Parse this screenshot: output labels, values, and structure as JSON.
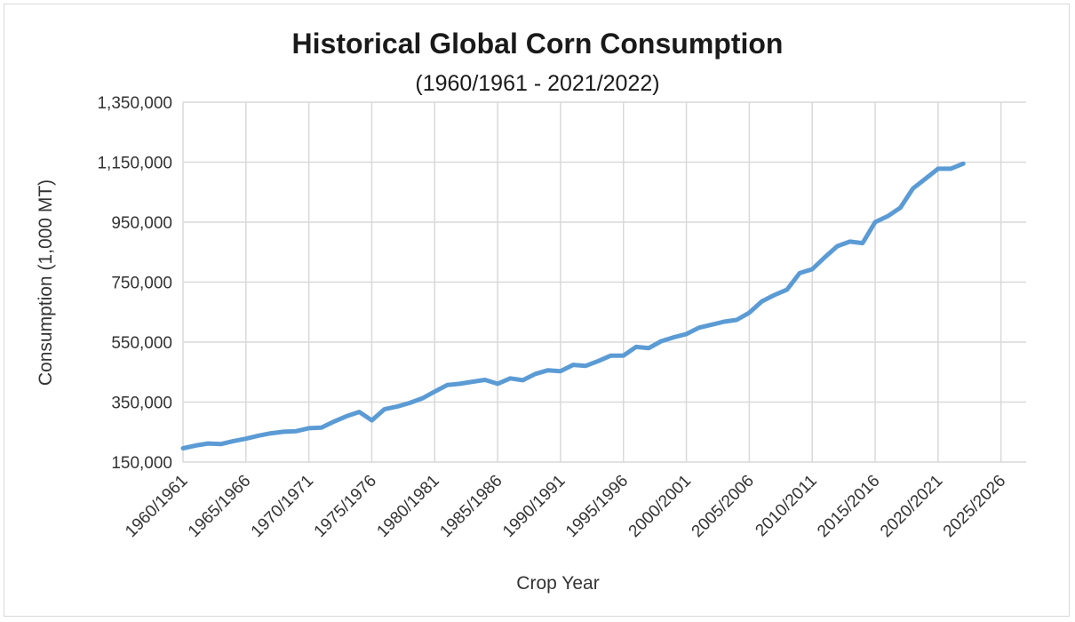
{
  "chart_data": {
    "type": "line",
    "title": "Historical Global Corn Consumption",
    "subtitle": "(1960/1961 - 2021/2022)",
    "xlabel": "Crop Year",
    "ylabel": "Consumption (1,000 MT)",
    "ylim": [
      150000,
      1350000
    ],
    "yticks": [
      150000,
      350000,
      550000,
      750000,
      950000,
      1150000,
      1350000
    ],
    "ytick_labels": [
      "150,000",
      "350,000",
      "550,000",
      "750,000",
      "950,000",
      "1,150,000",
      "1,350,000"
    ],
    "xlim": [
      1960,
      2027
    ],
    "xticks": [
      1960,
      1965,
      1970,
      1975,
      1980,
      1985,
      1990,
      1995,
      2000,
      2005,
      2010,
      2015,
      2020,
      2025
    ],
    "xtick_labels": [
      "1960/1961",
      "1965/1966",
      "1970/1971",
      "1975/1976",
      "1980/1981",
      "1985/1986",
      "1990/1991",
      "1995/1996",
      "2000/2001",
      "2005/2006",
      "2010/2011",
      "2015/2016",
      "2020/2021",
      "2025/2026"
    ],
    "grid": true,
    "legend": "none",
    "line_color": "#5b9bd5",
    "x": [
      "1960/1961",
      "1961/1962",
      "1962/1963",
      "1963/1964",
      "1964/1965",
      "1965/1966",
      "1966/1967",
      "1967/1968",
      "1968/1969",
      "1969/1970",
      "1970/1971",
      "1971/1972",
      "1972/1973",
      "1973/1974",
      "1974/1975",
      "1975/1976",
      "1976/1977",
      "1977/1978",
      "1978/1979",
      "1979/1980",
      "1980/1981",
      "1981/1982",
      "1982/1983",
      "1983/1984",
      "1984/1985",
      "1985/1986",
      "1986/1987",
      "1987/1988",
      "1988/1989",
      "1989/1990",
      "1990/1991",
      "1991/1992",
      "1992/1993",
      "1993/1994",
      "1994/1995",
      "1995/1996",
      "1996/1997",
      "1997/1998",
      "1998/1999",
      "1999/2000",
      "2000/2001",
      "2001/2002",
      "2002/2003",
      "2003/2004",
      "2004/2005",
      "2005/2006",
      "2006/2007",
      "2007/2008",
      "2008/2009",
      "2009/2010",
      "2010/2011",
      "2011/2012",
      "2012/2013",
      "2013/2014",
      "2014/2015",
      "2015/2016",
      "2016/2017",
      "2017/2018",
      "2018/2019",
      "2019/2020",
      "2020/2021",
      "2021/2022",
      "2022/2023"
    ],
    "series": [
      {
        "values": [
          196000,
          205000,
          212000,
          210000,
          220000,
          228000,
          238000,
          246000,
          251000,
          253000,
          263000,
          265000,
          285000,
          303000,
          317000,
          289000,
          326000,
          335000,
          347000,
          362000,
          385000,
          407000,
          411000,
          418000,
          424000,
          411000,
          429000,
          423000,
          444000,
          456000,
          453000,
          474000,
          471000,
          487000,
          505000,
          505000,
          534000,
          530000,
          553000,
          566000,
          577000,
          598000,
          608000,
          618000,
          624000,
          648000,
          686000,
          707000,
          725000,
          780000,
          793000,
          833000,
          870000,
          885000,
          880000,
          950000,
          970000,
          998000,
          1062000,
          1095000,
          1128000,
          1128000,
          1145000
        ]
      }
    ]
  }
}
